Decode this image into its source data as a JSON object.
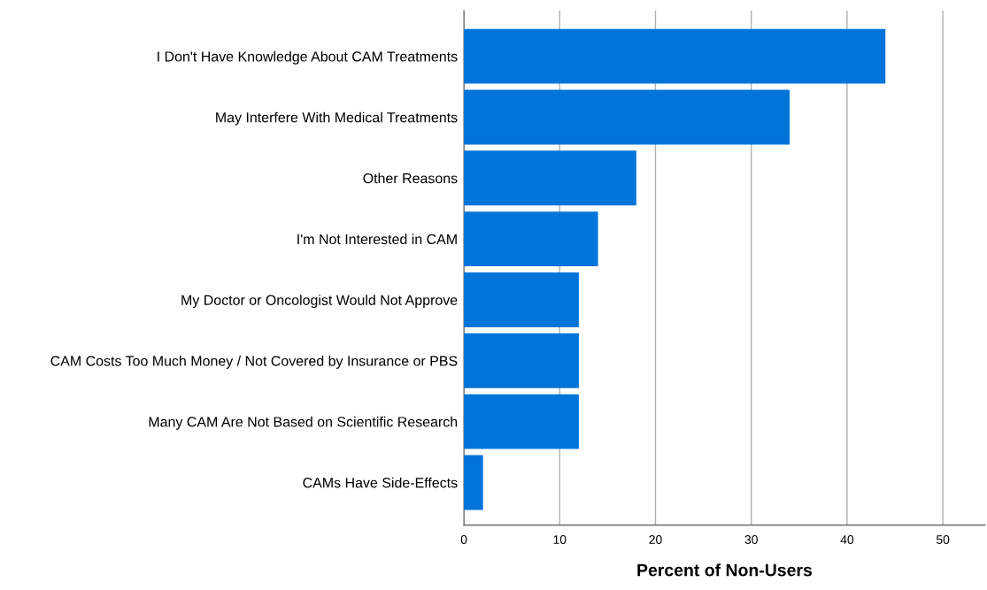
{
  "chart_data": {
    "type": "bar",
    "orientation": "horizontal",
    "xlabel": "Percent of Non-Users",
    "categories": [
      "I Don't Have Knowledge About CAM Treatments",
      "May Interfere With Medical Treatments",
      "Other Reasons",
      "I'm Not Interested in CAM",
      "My Doctor or Oncologist Would Not Approve",
      "CAM Costs Too Much Money / Not Covered by Insurance or PBS",
      "Many CAM Are Not Based on Scientific Research",
      "CAMs Have Side-Effects"
    ],
    "values": [
      44,
      34,
      18,
      14,
      12,
      12,
      12,
      2
    ],
    "color": "#0074d9",
    "xlim": [
      0,
      54.4
    ],
    "xticks": [
      0,
      10,
      20,
      30,
      40,
      50
    ],
    "grid": "x"
  }
}
